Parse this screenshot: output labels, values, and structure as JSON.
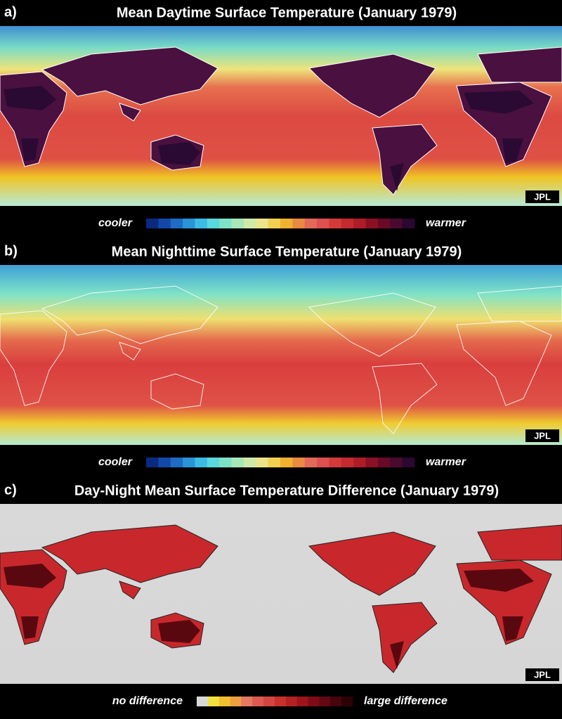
{
  "panels": [
    {
      "label": "a)",
      "title": "Mean Daytime Surface Temperature (January 1979)",
      "logo": "JPL",
      "scale": {
        "low": "cooler",
        "high": "warmer"
      }
    },
    {
      "label": "b)",
      "title": "Mean Nighttime Surface Temperature (January 1979)",
      "logo": "JPL",
      "scale": {
        "low": "cooler",
        "high": "warmer"
      }
    },
    {
      "label": "c)",
      "title": "Day-Night Mean Surface Temperature Difference (January 1979)",
      "logo": "JPL",
      "scale": {
        "low": "no difference",
        "high": "large difference"
      }
    }
  ]
}
